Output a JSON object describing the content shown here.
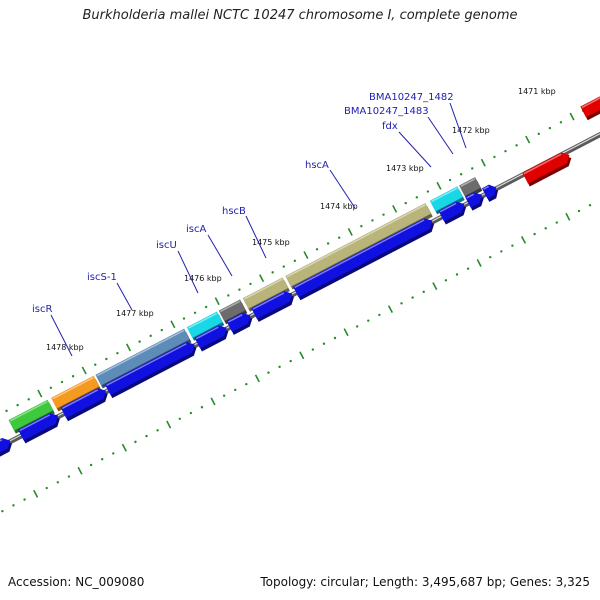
{
  "title": "Burkholderia mallei NCTC 10247 chromosome I, complete genome",
  "footer": {
    "accession": "Accession: NC_009080",
    "topology": "Topology: circular; Length: 3,495,687 bp; Genes: 3,325"
  },
  "colors": {
    "backbone": "#707070",
    "tick": "#2a8a2a",
    "cds_blue": "#1010e0",
    "label_blue": "#2222b0",
    "leader_blue": "#2222b0",
    "iscR": "#3ec83e",
    "orange": "#f59a20",
    "iscS": "#5e8cb8",
    "cyan": "#18d8e8",
    "grey": "#6c6c6c",
    "hsc": "#b8b47a",
    "red": "#e00000"
  },
  "kbp_labels": [
    "1471 kbp",
    "1472 kbp",
    "1473 kbp",
    "1474 kbp",
    "1475 kbp",
    "1476 kbp",
    "1477 kbp",
    "1478 kbp"
  ],
  "gene_labels": [
    "BMA10247_1482",
    "BMA10247_1483",
    "fdx",
    "hscA",
    "hscB",
    "iscA",
    "iscU",
    "iscS-1",
    "iscR"
  ]
}
